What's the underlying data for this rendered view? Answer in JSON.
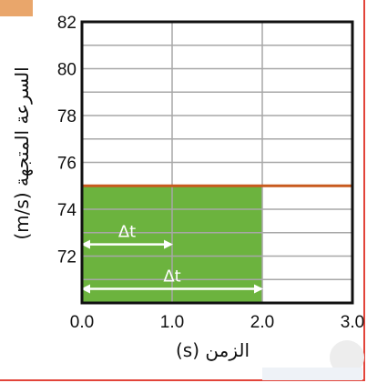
{
  "chart_data": {
    "type": "area",
    "xlabel": "الزمن (s)",
    "ylabel": "السرعة المتجهة (m/s)",
    "xlim": [
      0,
      3
    ],
    "ylim": [
      70,
      82
    ],
    "x_ticks": [
      "0.0",
      "1.0",
      "2.0",
      "3.0"
    ],
    "y_ticks": [
      "72",
      "74",
      "76",
      "78",
      "80",
      "82"
    ],
    "grid": true,
    "series": [
      {
        "x": [
          0,
          3
        ],
        "y": [
          75,
          75
        ]
      }
    ],
    "shaded_region": {
      "x_start": 0,
      "x_end": 2,
      "y_top": 75
    },
    "annotations": [
      {
        "text": "Δt",
        "x_start": 0,
        "x_end": 1,
        "y": 72.5
      },
      {
        "text": "Δt",
        "x_start": 0,
        "x_end": 2,
        "y": 70.6
      }
    ],
    "colors": {
      "fill": "#6cb33e",
      "line": "#c85a1e",
      "grid": "#a7a7a7",
      "axis": "#111111",
      "arrow": "#ffffff"
    }
  }
}
